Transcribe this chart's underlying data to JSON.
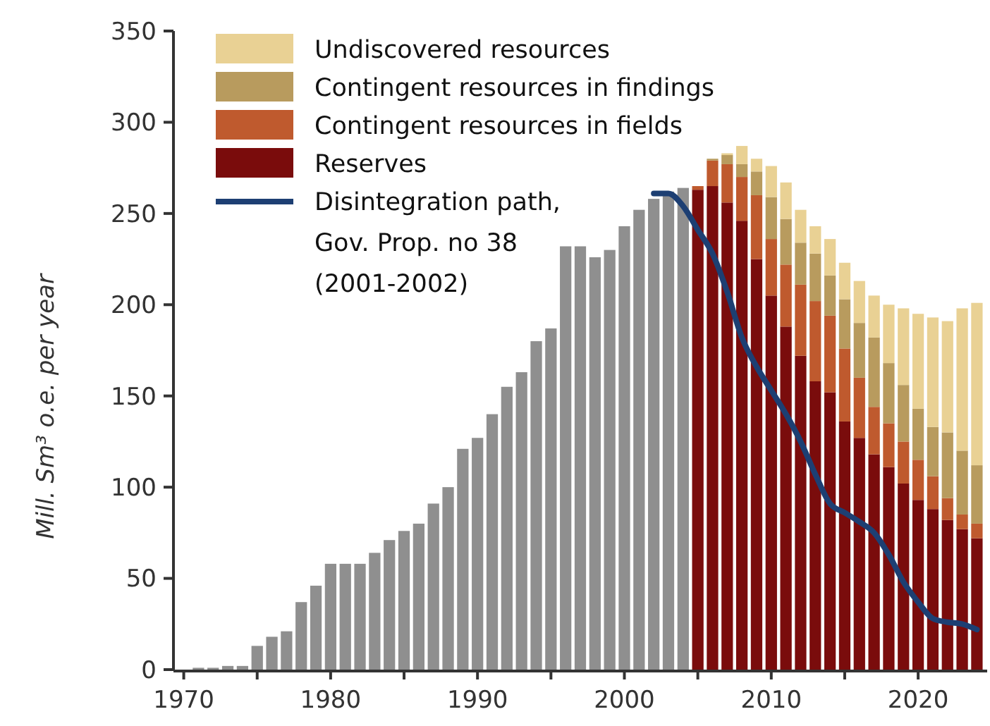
{
  "chart_data": {
    "type": "bar",
    "stacked": true,
    "ylabel": "Mill. Sm³ o.e. per year",
    "x": [
      1971,
      1972,
      1973,
      1974,
      1975,
      1976,
      1977,
      1978,
      1979,
      1980,
      1981,
      1982,
      1983,
      1984,
      1985,
      1986,
      1987,
      1988,
      1989,
      1990,
      1991,
      1992,
      1993,
      1994,
      1995,
      1996,
      1997,
      1998,
      1999,
      2000,
      2001,
      2002,
      2003,
      2004,
      2005,
      2006,
      2007,
      2008,
      2009,
      2010,
      2011,
      2012,
      2013,
      2014,
      2015,
      2016,
      2017,
      2018,
      2019,
      2020,
      2021,
      2022,
      2023,
      2024
    ],
    "series": [
      {
        "color": "#8f8f8f",
        "values": [
          1,
          1,
          2,
          2,
          13,
          18,
          21,
          37,
          46,
          58,
          58,
          58,
          64,
          71,
          76,
          80,
          91,
          100,
          121,
          127,
          140,
          155,
          163,
          180,
          187,
          232,
          232,
          226,
          230,
          243,
          252,
          258,
          262,
          264,
          null,
          null,
          null,
          null,
          null,
          null,
          null,
          null,
          null,
          null,
          null,
          null,
          null,
          null,
          null,
          null,
          null,
          null,
          null,
          null
        ]
      },
      {
        "name": "Reserves",
        "color": "#7a0c0c",
        "values": [
          null,
          null,
          null,
          null,
          null,
          null,
          null,
          null,
          null,
          null,
          null,
          null,
          null,
          null,
          null,
          null,
          null,
          null,
          null,
          null,
          null,
          null,
          null,
          null,
          null,
          null,
          null,
          null,
          null,
          null,
          null,
          null,
          null,
          null,
          263,
          265,
          256,
          246,
          225,
          205,
          188,
          172,
          158,
          152,
          136,
          127,
          118,
          111,
          102,
          93,
          88,
          82,
          77,
          72
        ]
      },
      {
        "name": "Contingent resources in fields",
        "color": "#bf5a2e",
        "values": [
          null,
          null,
          null,
          null,
          null,
          null,
          null,
          null,
          null,
          null,
          null,
          null,
          null,
          null,
          null,
          null,
          null,
          null,
          null,
          null,
          null,
          null,
          null,
          null,
          null,
          null,
          null,
          null,
          null,
          null,
          null,
          null,
          null,
          null,
          2,
          14,
          21,
          24,
          35,
          31,
          34,
          39,
          44,
          42,
          40,
          33,
          26,
          24,
          23,
          22,
          18,
          12,
          8,
          8
        ]
      },
      {
        "name": "Contingent resources in findings",
        "color": "#b89b5e",
        "values": [
          null,
          null,
          null,
          null,
          null,
          null,
          null,
          null,
          null,
          null,
          null,
          null,
          null,
          null,
          null,
          null,
          null,
          null,
          null,
          null,
          null,
          null,
          null,
          null,
          null,
          null,
          null,
          null,
          null,
          null,
          null,
          null,
          null,
          null,
          0,
          1,
          5,
          7,
          13,
          23,
          25,
          23,
          26,
          22,
          27,
          30,
          38,
          33,
          31,
          28,
          27,
          36,
          35,
          32
        ]
      },
      {
        "name": "Undiscovered resources",
        "color": "#e9d194",
        "values": [
          null,
          null,
          null,
          null,
          null,
          null,
          null,
          null,
          null,
          null,
          null,
          null,
          null,
          null,
          null,
          null,
          null,
          null,
          null,
          null,
          null,
          null,
          null,
          null,
          null,
          null,
          null,
          null,
          null,
          null,
          null,
          null,
          null,
          null,
          0,
          0,
          1,
          10,
          7,
          17,
          20,
          18,
          15,
          20,
          20,
          23,
          23,
          32,
          42,
          52,
          60,
          61,
          78,
          89
        ]
      },
      {
        "type": "line",
        "name": "Disintegration path,\nGov. Prop. no 38\n(2001-2002)",
        "color": "#1d3f73",
        "x": [
          2002,
          2003,
          2004,
          2005,
          2006,
          2007,
          2008,
          2009,
          2010,
          2011,
          2012,
          2013,
          2014,
          2015,
          2016,
          2017,
          2018,
          2019,
          2020,
          2021,
          2022,
          2023,
          2024
        ],
        "values": [
          261,
          261,
          254,
          241,
          228,
          207,
          182,
          166,
          153,
          140,
          125,
          107,
          91,
          86,
          81,
          75,
          63,
          48,
          37,
          28,
          26,
          25,
          22
        ]
      }
    ],
    "xlim": [
      1969.3,
      2024.7
    ],
    "xticks": [
      1970,
      {
        "value": 1975,
        "label": null
      },
      1980,
      {
        "value": 1985,
        "label": null
      },
      1990,
      {
        "value": 1995,
        "label": null
      },
      2000,
      {
        "value": 2005,
        "label": null
      },
      2010,
      {
        "value": 2015,
        "label": null
      },
      2020
    ],
    "ylim": [
      0,
      350
    ],
    "yticks": [
      0,
      50,
      100,
      150,
      200,
      250,
      300,
      350
    ],
    "grid": false,
    "legend": "top left"
  }
}
